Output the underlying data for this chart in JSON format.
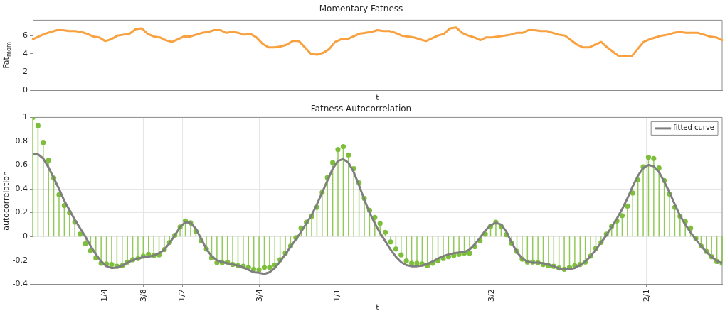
{
  "chart_data": [
    {
      "type": "line",
      "title": "Momentary Fatness",
      "xlabel": "t",
      "ylabel": "Fat$_{mom}$",
      "tick_labels": "y",
      "grid": false,
      "categories": [
        null,
        null,
        null,
        null,
        null,
        null,
        null,
        null,
        null,
        null,
        null,
        null,
        null,
        null,
        null,
        null,
        null,
        null,
        null,
        null,
        null,
        null,
        null,
        null,
        null,
        null,
        null,
        null,
        null,
        null,
        null,
        null,
        null,
        null,
        null,
        null,
        null,
        null,
        null,
        null,
        null,
        null,
        null,
        null,
        null,
        null,
        null,
        null,
        null,
        null,
        null,
        null,
        null,
        null,
        null,
        null,
        null,
        null,
        null,
        null,
        null,
        null,
        null,
        null,
        null,
        null,
        null,
        null,
        null,
        null,
        null,
        null,
        null,
        null,
        null,
        null,
        null,
        null,
        null,
        null,
        null,
        null,
        null,
        null,
        null,
        null,
        null,
        null,
        null,
        null,
        null,
        null,
        null,
        null,
        null,
        null,
        null,
        null,
        null,
        null,
        null,
        null,
        null,
        null,
        null,
        null,
        null,
        null,
        null,
        null,
        null,
        null,
        null,
        null,
        null
      ],
      "values": [
        5.6,
        5.9,
        6.2,
        6.4,
        6.6,
        6.6,
        6.5,
        6.5,
        6.4,
        6.2,
        5.9,
        5.8,
        5.4,
        5.6,
        6.0,
        6.1,
        6.2,
        6.7,
        6.8,
        6.2,
        5.9,
        5.8,
        5.5,
        5.3,
        5.6,
        5.9,
        5.9,
        6.1,
        6.3,
        6.4,
        6.6,
        6.6,
        6.3,
        6.4,
        6.3,
        6.1,
        6.2,
        5.8,
        5.1,
        4.7,
        4.7,
        4.8,
        5.0,
        5.4,
        5.4,
        4.7,
        4.0,
        3.9,
        4.1,
        4.5,
        5.3,
        5.6,
        5.6,
        5.9,
        6.2,
        6.3,
        6.4,
        6.6,
        6.5,
        6.5,
        6.3,
        6.0,
        5.9,
        5.8,
        5.6,
        5.4,
        5.7,
        6.0,
        6.2,
        6.8,
        6.9,
        6.3,
        6.0,
        5.8,
        5.5,
        5.8,
        5.8,
        5.9,
        6.0,
        6.1,
        6.3,
        6.3,
        6.6,
        6.6,
        6.5,
        6.5,
        6.3,
        6.1,
        6.0,
        5.5,
        5.0,
        4.7,
        4.7,
        5.0,
        5.3,
        4.7,
        4.2,
        3.7,
        3.7,
        3.7,
        4.5,
        5.3,
        5.6,
        5.8,
        6.0,
        6.1,
        6.3,
        6.4,
        6.3,
        6.3,
        6.3,
        6.1,
        5.9,
        5.8,
        5.5
      ],
      "color": "#f9a03f",
      "ylim": [
        0,
        7.7
      ],
      "yticks": [
        0,
        2,
        4,
        6
      ]
    },
    {
      "type": "lollipop",
      "title": "Fatness Autocorrelation",
      "xlabel": "t",
      "ylabel": "autocorrelation",
      "grid": true,
      "legend": "top right",
      "x": [
        0.017,
        0.034,
        0.051,
        0.068,
        0.085,
        0.102,
        0.119,
        0.136,
        0.153,
        0.17,
        0.187,
        0.204,
        0.221,
        0.238,
        0.255,
        0.272,
        0.289,
        0.306,
        0.323,
        0.34,
        0.357,
        0.374,
        0.391,
        0.408,
        0.425,
        0.442,
        0.459,
        0.476,
        0.493,
        0.51,
        0.527,
        0.544,
        0.561,
        0.578,
        0.595,
        0.612,
        0.629,
        0.646,
        0.663,
        0.68,
        0.697,
        0.714,
        0.731,
        0.748,
        0.765,
        0.782,
        0.799,
        0.816,
        0.833,
        0.85,
        0.867,
        0.884,
        0.901,
        0.918,
        0.935,
        0.952,
        0.969,
        0.986,
        1.003,
        1.02,
        1.037,
        1.054,
        1.071,
        1.088,
        1.105,
        1.122,
        1.139,
        1.156,
        1.173,
        1.19,
        1.207,
        1.224,
        1.241,
        1.258,
        1.275,
        1.292,
        1.309,
        1.326,
        1.343,
        1.36,
        1.377,
        1.394,
        1.411,
        1.428,
        1.445,
        1.462,
        1.479,
        1.496,
        1.513,
        1.53,
        1.547,
        1.564,
        1.581,
        1.598,
        1.615,
        1.632,
        1.649,
        1.666,
        1.683,
        1.7,
        1.717,
        1.734,
        1.751,
        1.768,
        1.785,
        1.802,
        1.819,
        1.836,
        1.853,
        1.87,
        1.887,
        1.904,
        1.921,
        1.938,
        1.955,
        1.972,
        1.989,
        2.006,
        2.023,
        2.04,
        2.057,
        2.074,
        2.091,
        2.108,
        2.125,
        2.142,
        2.159,
        2.176,
        2.193,
        2.21,
        2.227,
        2.244
      ],
      "xlim": [
        0.017,
        2.244
      ],
      "xticks": [
        {
          "value": 0.25,
          "label": "1/4"
        },
        {
          "value": 0.375,
          "label": "3/8"
        },
        {
          "value": 0.5,
          "label": "1/2"
        },
        {
          "value": 0.75,
          "label": "3/4"
        },
        {
          "value": 1,
          "label": "1/1"
        },
        {
          "value": 1.5,
          "label": "3/2"
        },
        {
          "value": 2,
          "label": "2/1"
        }
      ],
      "ylim": [
        -0.4,
        1
      ],
      "yticks": [
        -0.4,
        -0.2,
        0,
        0.2,
        0.4,
        0.6,
        0.8,
        1
      ],
      "series": [
        {
          "type": "lollipop",
          "marker": "circle",
          "color": "#7dbf3b",
          "values": [
            1.0,
            0.93,
            0.79,
            0.64,
            0.49,
            0.35,
            0.26,
            0.2,
            0.12,
            0.02,
            -0.06,
            -0.12,
            -0.18,
            -0.225,
            -0.23,
            -0.235,
            -0.25,
            -0.245,
            -0.215,
            -0.195,
            -0.185,
            -0.165,
            -0.15,
            -0.16,
            -0.155,
            -0.11,
            -0.05,
            0.01,
            0.08,
            0.13,
            0.115,
            0.045,
            -0.035,
            -0.105,
            -0.18,
            -0.22,
            -0.22,
            -0.215,
            -0.235,
            -0.245,
            -0.25,
            -0.26,
            -0.275,
            -0.28,
            -0.26,
            -0.26,
            -0.24,
            -0.195,
            -0.14,
            -0.08,
            -0.01,
            0.07,
            0.12,
            0.17,
            0.245,
            0.37,
            0.495,
            0.62,
            0.73,
            0.755,
            0.685,
            0.57,
            0.45,
            0.32,
            0.22,
            0.16,
            0.11,
            0.035,
            -0.045,
            -0.105,
            -0.155,
            -0.205,
            -0.225,
            -0.225,
            -0.23,
            -0.245,
            -0.225,
            -0.205,
            -0.185,
            -0.17,
            -0.16,
            -0.15,
            -0.14,
            -0.14,
            -0.085,
            -0.035,
            0.02,
            0.085,
            0.12,
            0.085,
            0.015,
            -0.055,
            -0.125,
            -0.19,
            -0.215,
            -0.215,
            -0.22,
            -0.235,
            -0.245,
            -0.25,
            -0.265,
            -0.275,
            -0.26,
            -0.245,
            -0.235,
            -0.215,
            -0.165,
            -0.1,
            -0.05,
            0.02,
            0.085,
            0.13,
            0.175,
            0.255,
            0.365,
            0.475,
            0.585,
            0.665,
            0.655,
            0.575,
            0.47,
            0.355,
            0.245,
            0.17,
            0.125,
            0.07,
            -0.015,
            -0.08,
            -0.125,
            -0.17,
            -0.21,
            -0.225
          ]
        },
        {
          "type": "line",
          "name": "fitted curve",
          "color": "#7f7f7f",
          "values": [
            0.69,
            0.69,
            0.655,
            0.58,
            0.49,
            0.4,
            0.3,
            0.22,
            0.14,
            0.07,
            0,
            -0.08,
            -0.15,
            -0.21,
            -0.25,
            -0.265,
            -0.26,
            -0.245,
            -0.22,
            -0.2,
            -0.185,
            -0.175,
            -0.17,
            -0.16,
            -0.14,
            -0.11,
            -0.055,
            0.01,
            0.08,
            0.12,
            0.115,
            0.065,
            -0.02,
            -0.105,
            -0.165,
            -0.2,
            -0.215,
            -0.225,
            -0.235,
            -0.245,
            -0.26,
            -0.28,
            -0.3,
            -0.305,
            -0.315,
            -0.3,
            -0.265,
            -0.21,
            -0.15,
            -0.085,
            -0.025,
            0.04,
            0.11,
            0.18,
            0.27,
            0.37,
            0.47,
            0.57,
            0.635,
            0.65,
            0.62,
            0.54,
            0.43,
            0.31,
            0.2,
            0.11,
            0.03,
            -0.04,
            -0.11,
            -0.17,
            -0.215,
            -0.24,
            -0.25,
            -0.25,
            -0.245,
            -0.23,
            -0.21,
            -0.185,
            -0.165,
            -0.15,
            -0.14,
            -0.135,
            -0.13,
            -0.11,
            -0.065,
            -0.01,
            0.05,
            0.095,
            0.115,
            0.1,
            0.04,
            -0.05,
            -0.13,
            -0.185,
            -0.21,
            -0.22,
            -0.22,
            -0.225,
            -0.235,
            -0.25,
            -0.27,
            -0.275,
            -0.275,
            -0.265,
            -0.24,
            -0.21,
            -0.165,
            -0.11,
            -0.05,
            0.01,
            0.08,
            0.15,
            0.23,
            0.32,
            0.42,
            0.51,
            0.575,
            0.6,
            0.59,
            0.54,
            0.46,
            0.37,
            0.27,
            0.175,
            0.1,
            0.035,
            -0.025,
            -0.08,
            -0.13,
            -0.17,
            -0.205,
            -0.225
          ]
        }
      ]
    }
  ]
}
